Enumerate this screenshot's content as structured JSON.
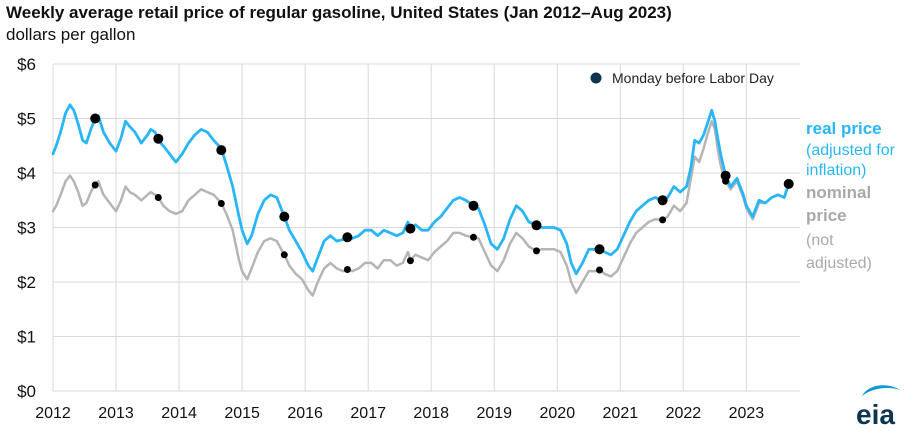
{
  "title": "Weekly average retail price of regular gasoline, United States (Jan 2012–Aug 2023)",
  "unit_label": "dollars per gallon",
  "logo_text": "eia",
  "colors": {
    "real": "#29b6f6",
    "nominal": "#b5b5b5",
    "marker": "#000000",
    "legend_marker": "#0d3550",
    "grid": "#d9d9d9"
  },
  "chart_data": {
    "type": "line",
    "title": "Weekly average retail price of regular gasoline, United States (Jan 2012–Aug 2023)",
    "ylabel": "dollars per gallon",
    "xlim": [
      2012,
      2023.85
    ],
    "ylim": [
      0,
      6
    ],
    "y_ticks": [
      0,
      1,
      2,
      3,
      4,
      5,
      6
    ],
    "y_tick_labels": [
      "$0",
      "$1",
      "$2",
      "$3",
      "$4",
      "$5",
      "$6"
    ],
    "x_ticks": [
      2012,
      2013,
      2014,
      2015,
      2016,
      2017,
      2018,
      2019,
      2020,
      2021,
      2022,
      2023
    ],
    "x_tick_labels": [
      "2012",
      "2013",
      "2014",
      "2015",
      "2016",
      "2017",
      "2018",
      "2019",
      "2020",
      "2021",
      "2022",
      "2023"
    ],
    "legend": {
      "marker_label": "Monday before Labor Day",
      "position": "top-right"
    },
    "series_labels": {
      "real": [
        "real price",
        "(adjusted for",
        "inflation)"
      ],
      "nominal": [
        "nominal",
        "price",
        "(not",
        "adjusted)"
      ]
    },
    "series": [
      {
        "name": "real price (adjusted for inflation)",
        "x": [
          2012.0,
          2012.05,
          2012.12,
          2012.2,
          2012.27,
          2012.33,
          2012.4,
          2012.47,
          2012.53,
          2012.6,
          2012.67,
          2012.72,
          2012.8,
          2012.9,
          2013.0,
          2013.08,
          2013.15,
          2013.22,
          2013.3,
          2013.4,
          2013.5,
          2013.55,
          2013.62,
          2013.67,
          2013.75,
          2013.85,
          2013.95,
          2014.05,
          2014.15,
          2014.25,
          2014.35,
          2014.45,
          2014.55,
          2014.67,
          2014.75,
          2014.85,
          2014.95,
          2015.0,
          2015.08,
          2015.15,
          2015.25,
          2015.35,
          2015.45,
          2015.55,
          2015.67,
          2015.75,
          2015.85,
          2015.95,
          2016.05,
          2016.12,
          2016.2,
          2016.3,
          2016.4,
          2016.5,
          2016.6,
          2016.67,
          2016.75,
          2016.85,
          2016.95,
          2017.05,
          2017.15,
          2017.25,
          2017.35,
          2017.45,
          2017.55,
          2017.63,
          2017.67,
          2017.75,
          2017.85,
          2017.95,
          2018.05,
          2018.15,
          2018.25,
          2018.35,
          2018.45,
          2018.55,
          2018.67,
          2018.75,
          2018.85,
          2018.95,
          2019.05,
          2019.15,
          2019.25,
          2019.35,
          2019.45,
          2019.55,
          2019.67,
          2019.75,
          2019.85,
          2019.95,
          2020.05,
          2020.15,
          2020.22,
          2020.3,
          2020.4,
          2020.5,
          2020.6,
          2020.67,
          2020.75,
          2020.85,
          2020.95,
          2021.05,
          2021.15,
          2021.25,
          2021.35,
          2021.45,
          2021.55,
          2021.67,
          2021.75,
          2021.85,
          2021.95,
          2022.05,
          2022.12,
          2022.18,
          2022.25,
          2022.32,
          2022.38,
          2022.45,
          2022.5,
          2022.55,
          2022.6,
          2022.67,
          2022.75,
          2022.85,
          2022.95,
          2023.0,
          2023.1,
          2023.2,
          2023.3,
          2023.4,
          2023.5,
          2023.6,
          2023.67
        ],
        "values": [
          4.35,
          4.5,
          4.75,
          5.1,
          5.25,
          5.15,
          4.9,
          4.6,
          4.55,
          4.8,
          5.0,
          5.05,
          4.75,
          4.55,
          4.4,
          4.65,
          4.95,
          4.85,
          4.75,
          4.55,
          4.7,
          4.8,
          4.75,
          4.6,
          4.5,
          4.35,
          4.2,
          4.35,
          4.55,
          4.7,
          4.8,
          4.75,
          4.6,
          4.45,
          4.15,
          3.75,
          3.2,
          2.95,
          2.7,
          2.85,
          3.25,
          3.5,
          3.6,
          3.55,
          3.2,
          2.95,
          2.75,
          2.55,
          2.3,
          2.2,
          2.45,
          2.75,
          2.85,
          2.75,
          2.78,
          2.85,
          2.8,
          2.85,
          2.95,
          2.95,
          2.85,
          2.95,
          2.9,
          2.85,
          2.9,
          3.1,
          2.98,
          3.05,
          2.95,
          2.95,
          3.1,
          3.2,
          3.35,
          3.5,
          3.55,
          3.5,
          3.4,
          3.35,
          3.05,
          2.7,
          2.6,
          2.8,
          3.15,
          3.4,
          3.3,
          3.1,
          3.05,
          3.0,
          3.0,
          3.0,
          2.95,
          2.7,
          2.35,
          2.15,
          2.35,
          2.6,
          2.6,
          2.6,
          2.55,
          2.5,
          2.6,
          2.85,
          3.1,
          3.3,
          3.4,
          3.5,
          3.55,
          3.5,
          3.55,
          3.75,
          3.65,
          3.75,
          4.1,
          4.6,
          4.55,
          4.7,
          4.9,
          5.15,
          4.95,
          4.6,
          4.3,
          3.95,
          3.75,
          3.9,
          3.6,
          3.4,
          3.2,
          3.5,
          3.45,
          3.55,
          3.6,
          3.55,
          3.8
        ]
      },
      {
        "name": "nominal price (not adjusted)",
        "x": [
          2012.0,
          2012.05,
          2012.12,
          2012.2,
          2012.27,
          2012.33,
          2012.4,
          2012.47,
          2012.53,
          2012.6,
          2012.67,
          2012.72,
          2012.8,
          2012.9,
          2013.0,
          2013.08,
          2013.15,
          2013.22,
          2013.3,
          2013.4,
          2013.5,
          2013.55,
          2013.62,
          2013.67,
          2013.75,
          2013.85,
          2013.95,
          2014.05,
          2014.15,
          2014.25,
          2014.35,
          2014.45,
          2014.55,
          2014.67,
          2014.75,
          2014.85,
          2014.95,
          2015.0,
          2015.08,
          2015.15,
          2015.25,
          2015.35,
          2015.45,
          2015.55,
          2015.67,
          2015.75,
          2015.85,
          2015.95,
          2016.05,
          2016.12,
          2016.2,
          2016.3,
          2016.4,
          2016.5,
          2016.6,
          2016.67,
          2016.75,
          2016.85,
          2016.95,
          2017.05,
          2017.15,
          2017.25,
          2017.35,
          2017.45,
          2017.55,
          2017.63,
          2017.67,
          2017.75,
          2017.85,
          2017.95,
          2018.05,
          2018.15,
          2018.25,
          2018.35,
          2018.45,
          2018.55,
          2018.67,
          2018.75,
          2018.85,
          2018.95,
          2019.05,
          2019.15,
          2019.25,
          2019.35,
          2019.45,
          2019.55,
          2019.67,
          2019.75,
          2019.85,
          2019.95,
          2020.05,
          2020.15,
          2020.22,
          2020.3,
          2020.4,
          2020.5,
          2020.6,
          2020.67,
          2020.75,
          2020.85,
          2020.95,
          2021.05,
          2021.15,
          2021.25,
          2021.35,
          2021.45,
          2021.55,
          2021.67,
          2021.75,
          2021.85,
          2021.95,
          2022.05,
          2022.12,
          2022.18,
          2022.25,
          2022.32,
          2022.38,
          2022.45,
          2022.5,
          2022.55,
          2022.6,
          2022.67,
          2022.75,
          2022.85,
          2022.95,
          2023.0,
          2023.1,
          2023.2,
          2023.3,
          2023.4,
          2023.5,
          2023.6,
          2023.67
        ],
        "values": [
          3.3,
          3.4,
          3.6,
          3.85,
          3.95,
          3.85,
          3.65,
          3.4,
          3.45,
          3.65,
          3.8,
          3.85,
          3.6,
          3.45,
          3.3,
          3.5,
          3.75,
          3.65,
          3.6,
          3.5,
          3.6,
          3.65,
          3.6,
          3.55,
          3.4,
          3.3,
          3.25,
          3.3,
          3.5,
          3.6,
          3.7,
          3.65,
          3.6,
          3.45,
          3.25,
          2.95,
          2.4,
          2.2,
          2.05,
          2.25,
          2.55,
          2.75,
          2.8,
          2.75,
          2.5,
          2.3,
          2.15,
          2.05,
          1.85,
          1.75,
          2.0,
          2.25,
          2.35,
          2.25,
          2.2,
          2.22,
          2.2,
          2.25,
          2.35,
          2.35,
          2.25,
          2.4,
          2.4,
          2.3,
          2.35,
          2.55,
          2.4,
          2.5,
          2.45,
          2.4,
          2.55,
          2.65,
          2.75,
          2.9,
          2.9,
          2.85,
          2.82,
          2.8,
          2.55,
          2.3,
          2.2,
          2.4,
          2.7,
          2.9,
          2.8,
          2.65,
          2.57,
          2.6,
          2.6,
          2.6,
          2.55,
          2.3,
          2.0,
          1.8,
          2.0,
          2.2,
          2.2,
          2.22,
          2.15,
          2.1,
          2.2,
          2.45,
          2.7,
          2.9,
          3.0,
          3.1,
          3.15,
          3.14,
          3.2,
          3.4,
          3.3,
          3.45,
          3.9,
          4.3,
          4.2,
          4.45,
          4.7,
          4.95,
          4.8,
          4.4,
          4.1,
          3.85,
          3.7,
          3.85,
          3.55,
          3.35,
          3.15,
          3.45,
          3.45,
          3.55,
          3.6,
          3.55,
          3.8
        ]
      },
      {
        "name": "Monday before Labor Day (real)",
        "x": [
          2012.67,
          2013.67,
          2014.67,
          2015.67,
          2016.67,
          2017.67,
          2018.67,
          2019.67,
          2020.67,
          2021.67,
          2022.67,
          2023.67
        ],
        "values": [
          5.0,
          4.63,
          4.42,
          3.2,
          2.82,
          2.98,
          3.4,
          3.04,
          2.6,
          3.5,
          3.95,
          3.8
        ]
      },
      {
        "name": "Monday before Labor Day (nominal)",
        "x": [
          2012.67,
          2013.67,
          2014.67,
          2015.67,
          2016.67,
          2017.67,
          2018.67,
          2019.67,
          2020.67,
          2021.67,
          2022.67,
          2023.67
        ],
        "values": [
          3.78,
          3.55,
          3.44,
          2.5,
          2.23,
          2.39,
          2.82,
          2.57,
          2.22,
          3.14,
          3.85,
          3.8
        ]
      }
    ]
  }
}
